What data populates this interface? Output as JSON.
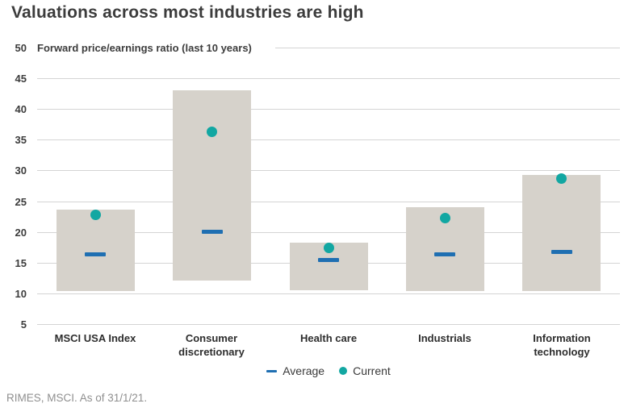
{
  "title": "Valuations across most industries are high",
  "footer": "RIMES, MSCI. As of 31/1/21.",
  "chart_data": {
    "type": "bar",
    "subtype": "floating-range-bars-with-markers",
    "title": "Forward price/earnings ratio (last 10 years)",
    "categories": [
      "MSCI USA Index",
      "Consumer\ndiscretionary",
      "Health care",
      "Industrials",
      "Information\ntechnology"
    ],
    "series": [
      {
        "name": "10-year range low",
        "values": [
          10.4,
          12.2,
          10.5,
          10.4,
          10.4
        ]
      },
      {
        "name": "10-year range high",
        "values": [
          23.6,
          43.1,
          18.2,
          24.0,
          29.3
        ]
      },
      {
        "name": "Average",
        "values": [
          16.3,
          20.0,
          15.4,
          16.4,
          16.7
        ]
      },
      {
        "name": "Current",
        "values": [
          22.8,
          36.3,
          17.4,
          22.3,
          28.7
        ]
      }
    ],
    "yticks": [
      50,
      45,
      40,
      35,
      30,
      25,
      20,
      15,
      10,
      5
    ],
    "ylim": [
      5,
      50
    ],
    "grid": true,
    "legend": {
      "position": "bottom",
      "items": [
        {
          "label": "Average",
          "marker": "dash"
        },
        {
          "label": "Current",
          "marker": "dot"
        }
      ]
    },
    "colors": {
      "range_bar": "#d6d2cb",
      "average": "#1f6fb2",
      "current": "#12a7a2",
      "gridline": "#d4d4d4"
    }
  }
}
